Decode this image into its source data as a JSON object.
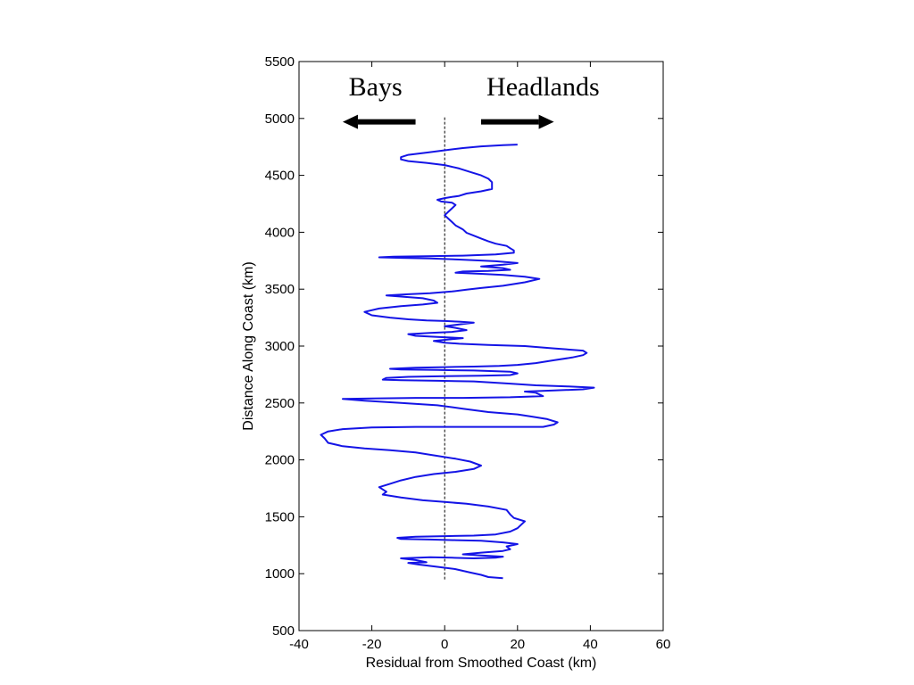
{
  "chart_data": {
    "type": "line",
    "title": "",
    "xlabel": "Residual from Smoothed Coast (km)",
    "ylabel": "Distance Along Coast (km)",
    "xlim": [
      -40,
      60
    ],
    "ylim": [
      500,
      5500
    ],
    "xticks": [
      -40,
      -20,
      0,
      20,
      40,
      60
    ],
    "yticks": [
      500,
      1000,
      1500,
      2000,
      2500,
      3000,
      3500,
      4000,
      4500,
      5000,
      5500
    ],
    "grid": false,
    "colors": {
      "series": "#1414e6",
      "reference": "#000000",
      "arrow": "#000000"
    },
    "reference_line": {
      "x": 0,
      "y_range": [
        950,
        5020
      ],
      "style": "dashed"
    },
    "annotations": [
      {
        "text": "Bays",
        "direction": "left",
        "arrow_x": [
          -8,
          -28
        ],
        "text_x": -19,
        "y": 5280,
        "arrow_y": 4970
      },
      {
        "text": "Headlands",
        "direction": "right",
        "arrow_x": [
          10,
          30
        ],
        "text_x": 27,
        "y": 5280,
        "arrow_y": 4970
      }
    ],
    "series": [
      {
        "points": [
          [
            16,
            960
          ],
          [
            12,
            970
          ],
          [
            10,
            990
          ],
          [
            7,
            1010
          ],
          [
            3,
            1040
          ],
          [
            -2,
            1060
          ],
          [
            -7,
            1080
          ],
          [
            -10,
            1095
          ],
          [
            -5,
            1100
          ],
          [
            -8,
            1120
          ],
          [
            -12,
            1135
          ],
          [
            -4,
            1145
          ],
          [
            2,
            1140
          ],
          [
            8,
            1135
          ],
          [
            14,
            1140
          ],
          [
            16,
            1150
          ],
          [
            10,
            1160
          ],
          [
            5,
            1170
          ],
          [
            10,
            1185
          ],
          [
            16,
            1200
          ],
          [
            18,
            1215
          ],
          [
            17,
            1240
          ],
          [
            20,
            1260
          ],
          [
            16,
            1275
          ],
          [
            10,
            1290
          ],
          [
            3,
            1295
          ],
          [
            -4,
            1300
          ],
          [
            -12,
            1305
          ],
          [
            -13,
            1315
          ],
          [
            -8,
            1325
          ],
          [
            0,
            1330
          ],
          [
            8,
            1335
          ],
          [
            14,
            1345
          ],
          [
            18,
            1370
          ],
          [
            20,
            1400
          ],
          [
            21,
            1430
          ],
          [
            22,
            1460
          ],
          [
            19,
            1490
          ],
          [
            18,
            1520
          ],
          [
            17,
            1560
          ],
          [
            12,
            1590
          ],
          [
            6,
            1615
          ],
          [
            0,
            1630
          ],
          [
            -6,
            1645
          ],
          [
            -12,
            1670
          ],
          [
            -17,
            1695
          ],
          [
            -16,
            1720
          ],
          [
            -18,
            1760
          ],
          [
            -15,
            1790
          ],
          [
            -12,
            1820
          ],
          [
            -8,
            1850
          ],
          [
            -3,
            1875
          ],
          [
            3,
            1895
          ],
          [
            8,
            1920
          ],
          [
            10,
            1950
          ],
          [
            7,
            1985
          ],
          [
            3,
            2010
          ],
          [
            -3,
            2040
          ],
          [
            -8,
            2065
          ],
          [
            -15,
            2085
          ],
          [
            -22,
            2100
          ],
          [
            -28,
            2120
          ],
          [
            -32,
            2150
          ],
          [
            -33,
            2190
          ],
          [
            -34,
            2220
          ],
          [
            -32,
            2250
          ],
          [
            -28,
            2270
          ],
          [
            -20,
            2285
          ],
          [
            -8,
            2290
          ],
          [
            5,
            2290
          ],
          [
            17,
            2290
          ],
          [
            27,
            2290
          ],
          [
            30,
            2310
          ],
          [
            31,
            2330
          ],
          [
            28,
            2360
          ],
          [
            24,
            2380
          ],
          [
            20,
            2400
          ],
          [
            12,
            2420
          ],
          [
            5,
            2450
          ],
          [
            -2,
            2480
          ],
          [
            -12,
            2500
          ],
          [
            -22,
            2520
          ],
          [
            -28,
            2535
          ],
          [
            -20,
            2540
          ],
          [
            -8,
            2545
          ],
          [
            5,
            2545
          ],
          [
            18,
            2550
          ],
          [
            27,
            2560
          ],
          [
            25,
            2590
          ],
          [
            22,
            2600
          ],
          [
            30,
            2610
          ],
          [
            38,
            2620
          ],
          [
            41,
            2635
          ],
          [
            34,
            2645
          ],
          [
            25,
            2655
          ],
          [
            18,
            2670
          ],
          [
            8,
            2690
          ],
          [
            -2,
            2695
          ],
          [
            -12,
            2700
          ],
          [
            -17,
            2705
          ],
          [
            -16,
            2720
          ],
          [
            -10,
            2730
          ],
          [
            0,
            2735
          ],
          [
            10,
            2740
          ],
          [
            18,
            2745
          ],
          [
            20,
            2760
          ],
          [
            18,
            2775
          ],
          [
            8,
            2785
          ],
          [
            -2,
            2790
          ],
          [
            -12,
            2795
          ],
          [
            -15,
            2800
          ],
          [
            -8,
            2810
          ],
          [
            0,
            2815
          ],
          [
            8,
            2820
          ],
          [
            15,
            2825
          ],
          [
            20,
            2835
          ],
          [
            25,
            2850
          ],
          [
            30,
            2875
          ],
          [
            35,
            2900
          ],
          [
            38,
            2920
          ],
          [
            39,
            2940
          ],
          [
            38,
            2960
          ],
          [
            30,
            2980
          ],
          [
            22,
            3000
          ],
          [
            12,
            3010
          ],
          [
            4,
            3020
          ],
          [
            0,
            3030
          ],
          [
            -3,
            3045
          ],
          [
            2,
            3060
          ],
          [
            5,
            3070
          ],
          [
            -2,
            3080
          ],
          [
            -8,
            3090
          ],
          [
            -10,
            3105
          ],
          [
            -4,
            3115
          ],
          [
            2,
            3125
          ],
          [
            6,
            3140
          ],
          [
            3,
            3160
          ],
          [
            0,
            3175
          ],
          [
            4,
            3190
          ],
          [
            8,
            3205
          ],
          [
            4,
            3215
          ],
          [
            0,
            3220
          ],
          [
            -5,
            3225
          ],
          [
            -10,
            3235
          ],
          [
            -15,
            3250
          ],
          [
            -20,
            3270
          ],
          [
            -22,
            3300
          ],
          [
            -18,
            3330
          ],
          [
            -12,
            3350
          ],
          [
            -6,
            3365
          ],
          [
            -2,
            3380
          ],
          [
            -3,
            3400
          ],
          [
            -6,
            3420
          ],
          [
            -12,
            3435
          ],
          [
            -16,
            3445
          ],
          [
            -10,
            3455
          ],
          [
            -4,
            3465
          ],
          [
            2,
            3480
          ],
          [
            6,
            3495
          ],
          [
            10,
            3510
          ],
          [
            16,
            3530
          ],
          [
            22,
            3560
          ],
          [
            26,
            3590
          ],
          [
            22,
            3610
          ],
          [
            16,
            3625
          ],
          [
            10,
            3635
          ],
          [
            3,
            3645
          ],
          [
            5,
            3655
          ],
          [
            12,
            3660
          ],
          [
            18,
            3670
          ],
          [
            16,
            3685
          ],
          [
            10,
            3700
          ],
          [
            16,
            3715
          ],
          [
            20,
            3730
          ],
          [
            14,
            3745
          ],
          [
            4,
            3760
          ],
          [
            -4,
            3770
          ],
          [
            -12,
            3775
          ],
          [
            -18,
            3780
          ],
          [
            -14,
            3785
          ],
          [
            -5,
            3790
          ],
          [
            5,
            3795
          ],
          [
            14,
            3805
          ],
          [
            19,
            3820
          ],
          [
            19,
            3840
          ],
          [
            18,
            3860
          ],
          [
            17,
            3880
          ],
          [
            14,
            3900
          ],
          [
            12,
            3920
          ],
          [
            10,
            3945
          ],
          [
            8,
            3970
          ],
          [
            6,
            3995
          ],
          [
            5,
            4025
          ],
          [
            3,
            4060
          ],
          [
            2,
            4090
          ],
          [
            1,
            4120
          ],
          [
            0,
            4150
          ],
          [
            1,
            4180
          ],
          [
            2,
            4210
          ],
          [
            3,
            4240
          ],
          [
            2,
            4260
          ],
          [
            -1,
            4270
          ],
          [
            -2,
            4285
          ],
          [
            0,
            4300
          ],
          [
            2,
            4310
          ],
          [
            4,
            4320
          ],
          [
            6,
            4340
          ],
          [
            10,
            4360
          ],
          [
            13,
            4380
          ],
          [
            13,
            4400
          ],
          [
            13,
            4420
          ],
          [
            13,
            4440
          ],
          [
            12,
            4470
          ],
          [
            10,
            4500
          ],
          [
            7,
            4530
          ],
          [
            4,
            4560
          ],
          [
            0,
            4590
          ],
          [
            -5,
            4610
          ],
          [
            -10,
            4625
          ],
          [
            -12,
            4640
          ],
          [
            -12,
            4660
          ],
          [
            -10,
            4680
          ],
          [
            -5,
            4700
          ],
          [
            0,
            4720
          ],
          [
            5,
            4740
          ],
          [
            10,
            4755
          ],
          [
            16,
            4765
          ],
          [
            20,
            4770
          ]
        ]
      }
    ]
  }
}
